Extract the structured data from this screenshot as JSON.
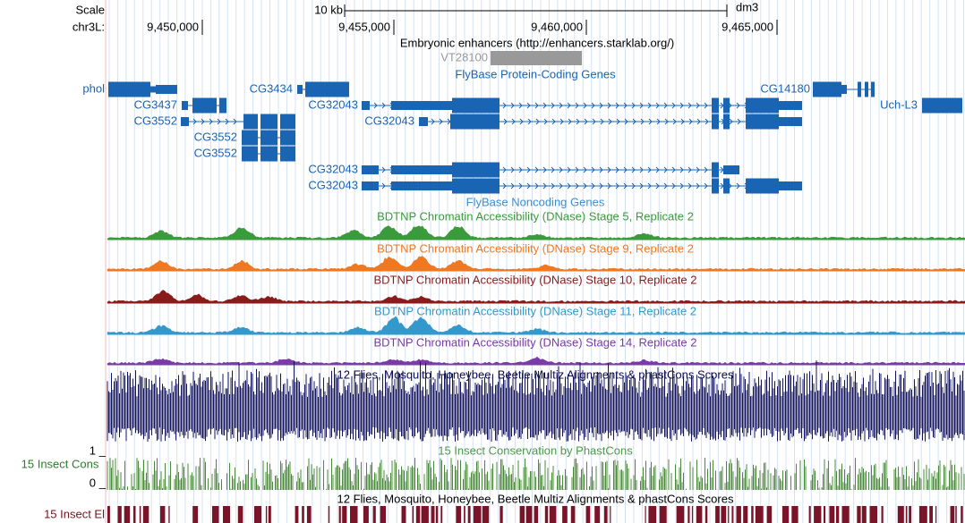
{
  "ruler": {
    "scale_label": "Scale",
    "scale_bar_label": "10 kb",
    "assembly": "dm3",
    "chrom": "chr3L:",
    "positions": [
      "9,450,000",
      "9,455,000",
      "9,460,000",
      "9,465,000"
    ]
  },
  "enhancers": {
    "title": "Embryonic enhancers (http://enhancers.starklab.org/)",
    "item": "VT28100"
  },
  "genes": {
    "title": "FlyBase Protein-Coding Genes",
    "labels": [
      "phol",
      "CG3437",
      "CG3552",
      "CG3434",
      "CG32043",
      "CG32043",
      "CG3552",
      "CG3552",
      "CG32043",
      "CG32043",
      "CG14180",
      "Uch-L3"
    ]
  },
  "noncoding_title": "FlyBase Noncoding Genes",
  "signal_tracks": [
    "BDTNP Chromatin Accessibility (DNase) Stage 5, Replicate 2",
    "BDTNP Chromatin Accessibility (DNase) Stage 9, Replicate 2",
    "BDTNP Chromatin Accessibility (DNase) Stage 10, Replicate 2",
    "BDTNP Chromatin Accessibility (DNase) Stage 11, Replicate 2",
    "BDTNP Chromatin Accessibility (DNase) Stage 14, Replicate 2"
  ],
  "multiz_title": "12 Flies, Mosquito, Honeybee, Beetle Multiz Alignments & phastCons Scores",
  "phastcons": {
    "title": "15 Insect Conservation by PhastCons",
    "left_label": "15 Insect Cons",
    "max": 1,
    "min": 0
  },
  "elements": {
    "title": "12 Flies, Mosquito, Honeybee, Beetle Multiz Alignments & phastCons Scores",
    "left_label": "15 Insect El"
  }
}
